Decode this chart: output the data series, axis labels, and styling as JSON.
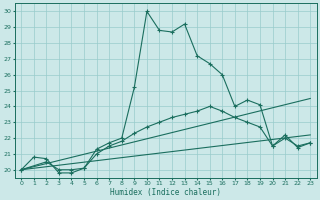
{
  "xlabel": "Humidex (Indice chaleur)",
  "xlim": [
    -0.5,
    23.5
  ],
  "ylim": [
    19.5,
    30.5
  ],
  "yticks": [
    20,
    21,
    22,
    23,
    24,
    25,
    26,
    27,
    28,
    29,
    30
  ],
  "xticks": [
    0,
    1,
    2,
    3,
    4,
    5,
    6,
    7,
    8,
    9,
    10,
    11,
    12,
    13,
    14,
    15,
    16,
    17,
    18,
    19,
    20,
    21,
    22,
    23
  ],
  "background_color": "#cce8e8",
  "grid_color": "#99cccc",
  "line_color": "#1a6e5e",
  "line1_x": [
    0,
    1,
    2,
    3,
    4,
    5,
    6,
    7,
    8,
    9,
    10,
    11,
    12,
    13,
    14,
    15,
    16,
    17,
    18,
    19,
    20,
    21,
    22,
    23
  ],
  "line1_y": [
    20.0,
    20.8,
    20.7,
    19.8,
    19.8,
    20.1,
    21.3,
    21.7,
    22.0,
    25.2,
    30.0,
    28.8,
    28.7,
    29.2,
    27.2,
    26.7,
    26.0,
    24.0,
    24.4,
    24.1,
    21.5,
    22.2,
    21.4,
    21.7
  ],
  "line2_x": [
    0,
    2,
    3,
    4,
    5,
    6,
    7,
    8,
    9,
    10,
    11,
    12,
    13,
    14,
    15,
    16,
    17,
    18,
    19,
    20,
    21,
    22,
    23
  ],
  "line2_y": [
    20.0,
    20.5,
    20.0,
    20.0,
    20.1,
    21.0,
    21.5,
    21.8,
    22.3,
    22.7,
    23.0,
    23.3,
    23.5,
    23.7,
    24.0,
    23.7,
    23.3,
    23.0,
    22.7,
    21.5,
    22.0,
    21.5,
    21.7
  ],
  "line3_x": [
    0,
    23
  ],
  "line3_y": [
    20.0,
    22.2
  ],
  "line4_x": [
    0,
    23
  ],
  "line4_y": [
    20.0,
    24.5
  ]
}
